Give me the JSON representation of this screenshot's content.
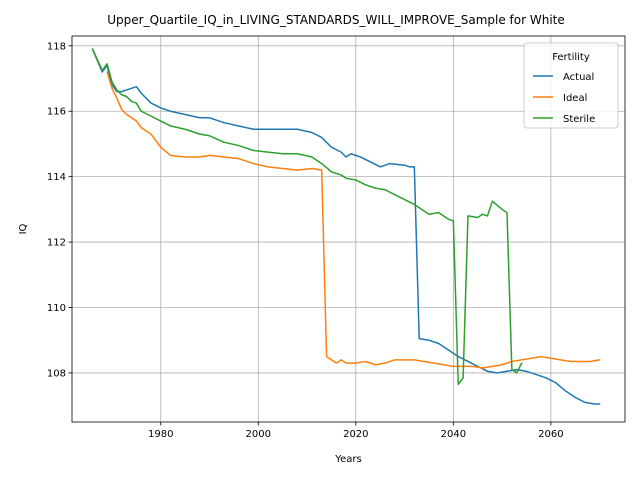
{
  "chart_data": {
    "type": "line",
    "title": "Upper_Quartile_IQ_in_LIVING_STANDARDS_WILL_IMPROVE_Sample for White",
    "xlabel": "Years",
    "ylabel": "IQ",
    "xlim": [
      1961.8,
      2075.2
    ],
    "ylim": [
      106.5,
      118.3
    ],
    "grid": true,
    "legend_placement": "top-right",
    "legend_title": "Fertility",
    "x_ticks": [
      1980,
      2000,
      2020,
      2040,
      2060
    ],
    "x_tick_labels": [
      "1980",
      "2000",
      "2020",
      "2040",
      "2060"
    ],
    "y_ticks": [
      108,
      110,
      112,
      114,
      116,
      118
    ],
    "y_tick_labels": [
      "108",
      "110",
      "112",
      "114",
      "116",
      "118"
    ],
    "series": [
      {
        "name": "Actual",
        "color": "#1f77b4",
        "x": [
          1966,
          1968,
          1969,
          1970,
          1971,
          1972,
          1973,
          1974,
          1975,
          1976,
          1977,
          1978,
          1980,
          1982,
          1985,
          1988,
          1990,
          1993,
          1996,
          1999,
          2002,
          2005,
          2008,
          2011,
          2013,
          2015,
          2017,
          2018,
          2019,
          2021,
          2023,
          2025,
          2027,
          2030,
          2031,
          2032,
          2033,
          2035,
          2037,
          2039,
          2041,
          2043,
          2045,
          2047,
          2049,
          2051,
          2053,
          2055,
          2057,
          2059,
          2061,
          2063,
          2065,
          2067,
          2069,
          2070
        ],
        "values": [
          117.9,
          117.2,
          117.4,
          116.8,
          116.6,
          116.6,
          116.65,
          116.7,
          116.75,
          116.55,
          116.4,
          116.25,
          116.1,
          116.0,
          115.9,
          115.8,
          115.8,
          115.65,
          115.55,
          115.45,
          115.45,
          115.45,
          115.45,
          115.35,
          115.2,
          114.9,
          114.75,
          114.6,
          114.7,
          114.6,
          114.45,
          114.3,
          114.4,
          114.35,
          114.3,
          114.3,
          109.05,
          109.0,
          108.9,
          108.7,
          108.5,
          108.35,
          108.2,
          108.05,
          108.0,
          108.05,
          108.1,
          108.05,
          107.95,
          107.85,
          107.7,
          107.45,
          107.25,
          107.1,
          107.05,
          107.05
        ]
      },
      {
        "name": "Ideal",
        "color": "#ff7f0e",
        "x": [
          1969,
          1970,
          1971,
          1972,
          1973,
          1975,
          1976,
          1978,
          1979,
          1980,
          1982,
          1985,
          1988,
          1990,
          1993,
          1996,
          1999,
          2002,
          2005,
          2008,
          2011,
          2013,
          2014,
          2016,
          2017,
          2018,
          2020,
          2022,
          2024,
          2026,
          2028,
          2030,
          2032,
          2034,
          2036,
          2038,
          2040,
          2042,
          2044,
          2046,
          2048,
          2050,
          2052,
          2054,
          2056,
          2058,
          2060,
          2062,
          2064,
          2066,
          2068,
          2070
        ],
        "values": [
          117.2,
          116.7,
          116.4,
          116.05,
          115.9,
          115.7,
          115.5,
          115.3,
          115.1,
          114.9,
          114.65,
          114.6,
          114.6,
          114.65,
          114.6,
          114.55,
          114.4,
          114.3,
          114.25,
          114.2,
          114.25,
          114.2,
          108.5,
          108.3,
          108.4,
          108.3,
          108.3,
          108.35,
          108.25,
          108.3,
          108.4,
          108.4,
          108.4,
          108.35,
          108.3,
          108.25,
          108.2,
          108.2,
          108.2,
          108.15,
          108.2,
          108.25,
          108.35,
          108.4,
          108.45,
          108.5,
          108.45,
          108.4,
          108.35,
          108.35,
          108.35,
          108.4
        ]
      },
      {
        "name": "Sterile",
        "color": "#2ca02c",
        "x": [
          1966,
          1968,
          1969,
          1970,
          1971,
          1972,
          1973,
          1974,
          1975,
          1976,
          1978,
          1980,
          1982,
          1985,
          1988,
          1990,
          1993,
          1996,
          1999,
          2002,
          2005,
          2008,
          2011,
          2013,
          2015,
          2017,
          2018,
          2020,
          2022,
          2024,
          2026,
          2028,
          2030,
          2032,
          2034,
          2035,
          2037,
          2039,
          2040,
          2041,
          2042,
          2043,
          2045,
          2046,
          2047,
          2048,
          2050,
          2051,
          2052,
          2053,
          2054
        ],
        "values": [
          117.9,
          117.25,
          117.45,
          116.9,
          116.65,
          116.5,
          116.45,
          116.3,
          116.25,
          116.0,
          115.85,
          115.7,
          115.55,
          115.45,
          115.3,
          115.25,
          115.05,
          114.95,
          114.8,
          114.75,
          114.7,
          114.7,
          114.6,
          114.4,
          114.15,
          114.05,
          113.95,
          113.9,
          113.75,
          113.65,
          113.6,
          113.45,
          113.3,
          113.15,
          112.95,
          112.85,
          112.9,
          112.7,
          112.65,
          107.65,
          107.85,
          112.8,
          112.75,
          112.85,
          112.8,
          113.25,
          113.0,
          112.9,
          108.1,
          108.0,
          108.3
        ]
      }
    ]
  }
}
